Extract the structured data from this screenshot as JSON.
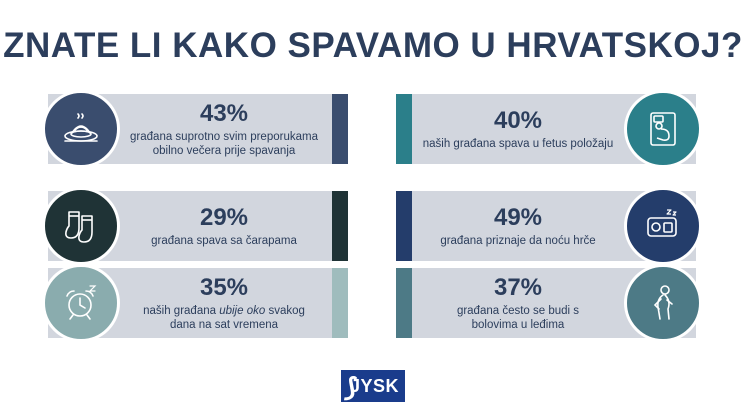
{
  "title": "ZNATE LI KAKO SPAVAMO U HRVATSKOJ?",
  "colors": {
    "navy": "#2c3e5c",
    "card": "#d2d6de",
    "brand": "#1a3c8c"
  },
  "cards": [
    {
      "id": "dinner",
      "percent": "43%",
      "lines": [
        "građana suprotno svim preporukama",
        "obilno večera prije spavanja"
      ],
      "icon": "dinner-plate-icon",
      "circle": "#3a4d6e",
      "stripe": "#3a4d6e"
    },
    {
      "id": "socks",
      "percent": "29%",
      "lines": [
        "građana spava sa čarapama"
      ],
      "icon": "socks-icon",
      "circle": "#1f3336",
      "stripe": "#1f3336"
    },
    {
      "id": "alarm",
      "percent": "35%",
      "lines": [],
      "rich": {
        "l1a": "naših građana ",
        "l1i": "ubije oko",
        "l1b": " svakog",
        "l2": "dana na sat vremena"
      },
      "icon": "alarm-clock-icon",
      "circle": "#8aacae",
      "stripe": "#9fbcbd"
    },
    {
      "id": "fetus",
      "percent": "40%",
      "lines": [
        "naših građana spava u fetus položaju"
      ],
      "icon": "fetal-position-icon",
      "circle": "#2b7f8a",
      "stripe": "#2b7f8a"
    },
    {
      "id": "snore",
      "percent": "49%",
      "lines": [
        "građana priznaje da noću hrče"
      ],
      "icon": "snoring-icon",
      "circle": "#243d6b",
      "stripe": "#243d6b"
    },
    {
      "id": "back",
      "percent": "37%",
      "lines": [
        "građana često se budi s",
        "bolovima u leđima"
      ],
      "icon": "back-pain-icon",
      "circle": "#4d7a86",
      "stripe": "#4d7a86"
    }
  ],
  "logo": {
    "text": "JYSK"
  }
}
